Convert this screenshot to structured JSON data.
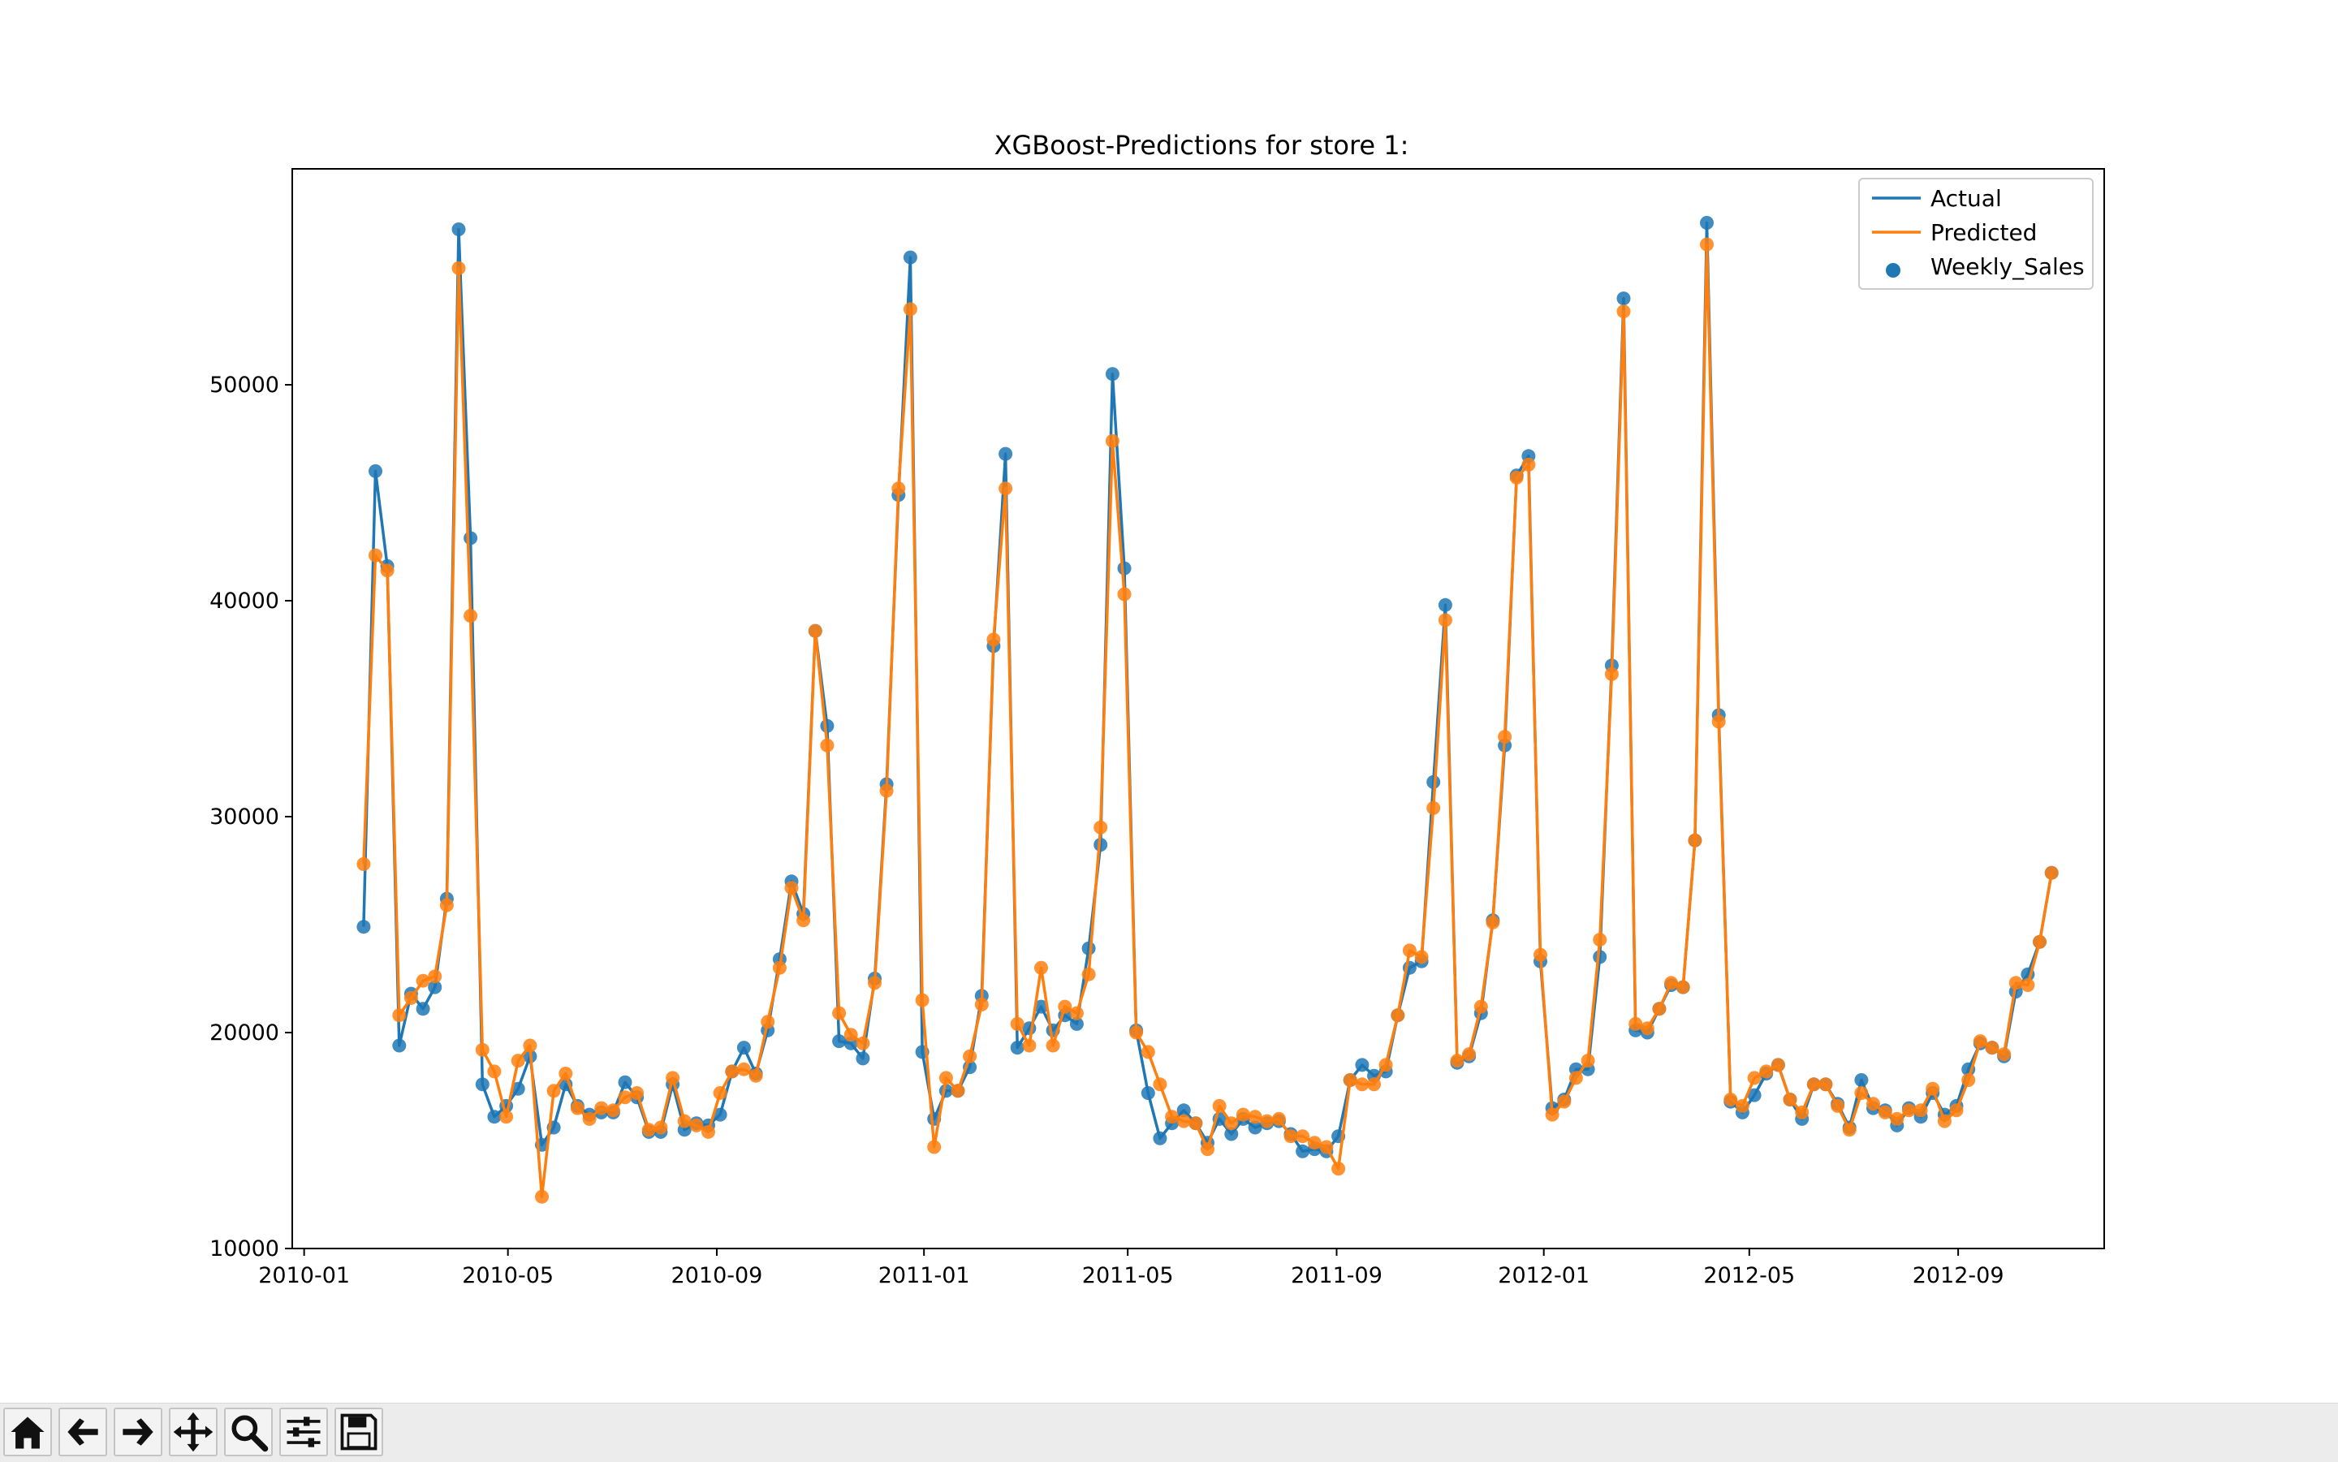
{
  "chart_data": {
    "type": "line",
    "title": "XGBoost-Predictions for store 1:",
    "xlabel": "",
    "ylabel": "",
    "x_ticks": [
      "2010-01",
      "2010-05",
      "2010-09",
      "2011-01",
      "2011-05",
      "2011-09",
      "2012-01",
      "2012-05",
      "2012-09"
    ],
    "y_ticks": [
      10000,
      20000,
      30000,
      40000,
      50000
    ],
    "xlim": [
      "2009-12-25",
      "2012-11-26"
    ],
    "ylim": [
      10000,
      60000
    ],
    "grid": false,
    "legend_position": "top-right",
    "legend": [
      "Actual",
      "Predicted",
      "Weekly_Sales"
    ],
    "colors": {
      "actual": "#1f77b4",
      "predicted": "#ff7f0e"
    },
    "start_date": "2010-02-05",
    "interval_days": 7,
    "series": [
      {
        "name": "Actual",
        "style": "line",
        "values": [
          24900,
          46000,
          41600,
          19400,
          21800,
          21100,
          22100,
          26200,
          57200,
          42900,
          17600,
          16100,
          16600,
          17400,
          18900,
          14800,
          15600,
          17600,
          16600,
          16200,
          16300,
          16300,
          17700,
          17000,
          15400,
          15400,
          17600,
          15500,
          15800,
          15700,
          16200,
          18200,
          19300,
          18100,
          20100,
          23400,
          27000,
          25500,
          38600,
          34200,
          19600,
          19500,
          18800,
          22500,
          31500,
          44900,
          55900,
          19100,
          16000,
          17300,
          17300,
          18400,
          21700,
          37900,
          46800,
          19300,
          20200,
          21200,
          20100,
          20800,
          20400,
          23900,
          28700,
          50500,
          41500,
          20100,
          17200,
          15100,
          15800,
          16400,
          15800,
          14900,
          16000,
          15300,
          16000,
          15600,
          15800,
          15900,
          15300,
          14500,
          14600,
          14500,
          15200,
          17800,
          18500,
          18000,
          18200,
          20800,
          23000,
          23300,
          31600,
          39800,
          18600,
          18900,
          20900,
          25200,
          33300,
          45800,
          46700,
          23300,
          16500,
          16900,
          18300,
          18300,
          23500,
          37000,
          54000,
          20100,
          20000,
          21100,
          22200,
          22100,
          28900,
          57500,
          34700,
          16800,
          16300,
          17100,
          18100,
          18500,
          16900,
          16000,
          17600,
          17600,
          16700,
          15600,
          17800,
          16500,
          16400,
          15700,
          16500,
          16100,
          17200,
          16200,
          16600,
          18300,
          19500,
          19300,
          18900,
          21900,
          22700,
          24200,
          27400
        ]
      },
      {
        "name": "Predicted",
        "style": "line",
        "values": [
          27800,
          42100,
          41400,
          20800,
          21600,
          22400,
          22600,
          25900,
          55400,
          39300,
          19200,
          18200,
          16100,
          18700,
          19400,
          12400,
          17300,
          18100,
          16500,
          16000,
          16500,
          16400,
          17000,
          17200,
          15500,
          15600,
          17900,
          15900,
          15700,
          15400,
          17200,
          18200,
          18300,
          18000,
          20500,
          23000,
          26700,
          25200,
          38600,
          33300,
          20900,
          19900,
          19500,
          22300,
          31200,
          45200,
          53500,
          21500,
          14700,
          17900,
          17300,
          18900,
          21300,
          38200,
          45200,
          20400,
          19400,
          23000,
          19400,
          21200,
          20900,
          22700,
          29500,
          47400,
          40300,
          20000,
          19100,
          17600,
          16100,
          15900,
          15800,
          14600,
          16600,
          15800,
          16200,
          16100,
          15900,
          16000,
          15200,
          15200,
          14900,
          14700,
          13700,
          17800,
          17600,
          17600,
          18500,
          20800,
          23800,
          23500,
          30400,
          39100,
          18700,
          19000,
          21200,
          25100,
          33700,
          45700,
          46300,
          23600,
          16200,
          16800,
          17900,
          18700,
          24300,
          36600,
          53400,
          20400,
          20200,
          21100,
          22300,
          22100,
          28900,
          56500,
          34400,
          16900,
          16600,
          17900,
          18200,
          18500,
          16900,
          16300,
          17600,
          17600,
          16600,
          15500,
          17200,
          16700,
          16300,
          16000,
          16400,
          16400,
          17400,
          15900,
          16400,
          17800,
          19600,
          19300,
          19000,
          22300,
          22200,
          24200,
          27400
        ]
      },
      {
        "name": "Weekly_Sales",
        "style": "scatter",
        "source": "Actual"
      }
    ]
  },
  "toolbar": {
    "buttons": [
      {
        "name": "home-button",
        "icon": "home-icon"
      },
      {
        "name": "back-button",
        "icon": "arrow-left-icon"
      },
      {
        "name": "forward-button",
        "icon": "arrow-right-icon"
      },
      {
        "name": "pan-button",
        "icon": "move-icon"
      },
      {
        "name": "zoom-button",
        "icon": "magnifier-icon"
      },
      {
        "name": "configure-subplots-button",
        "icon": "sliders-icon"
      },
      {
        "name": "save-button",
        "icon": "floppy-disk-icon"
      }
    ]
  }
}
